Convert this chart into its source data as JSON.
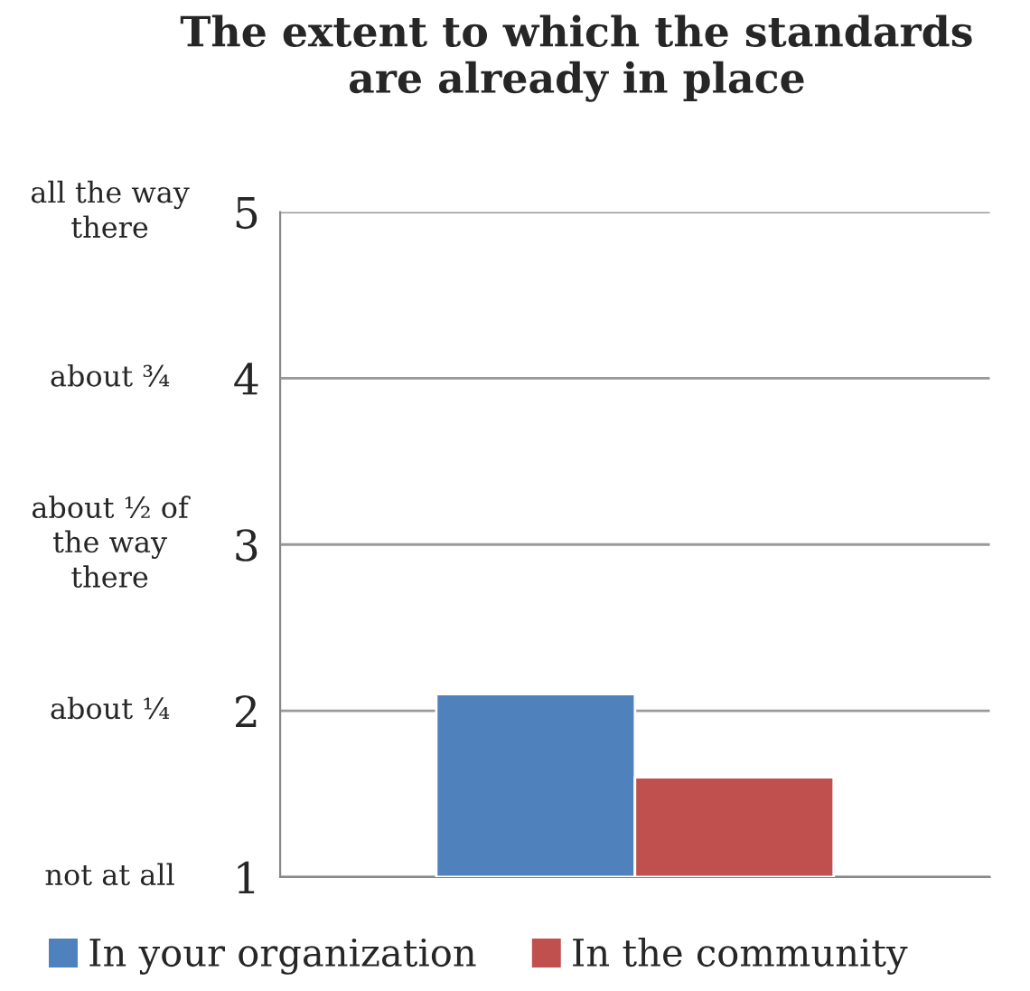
{
  "chart_data": {
    "type": "bar",
    "title": "The extent to which the standards\nare already in place",
    "categories": [
      null
    ],
    "series": [
      {
        "name": "In your organization",
        "color": "#4f81bd",
        "values": [
          2.1
        ]
      },
      {
        "name": "In the community",
        "color": "#c0504d",
        "values": [
          1.6
        ]
      }
    ],
    "ylim": [
      1,
      5
    ],
    "yticks": [
      1,
      2,
      3,
      4,
      5
    ],
    "grid": "y",
    "legend": "bottom",
    "annotations": [
      "not at all",
      "about ¼",
      "about ½ of\nthe way\nthere",
      "about ¾",
      "all the way\nthere"
    ]
  }
}
